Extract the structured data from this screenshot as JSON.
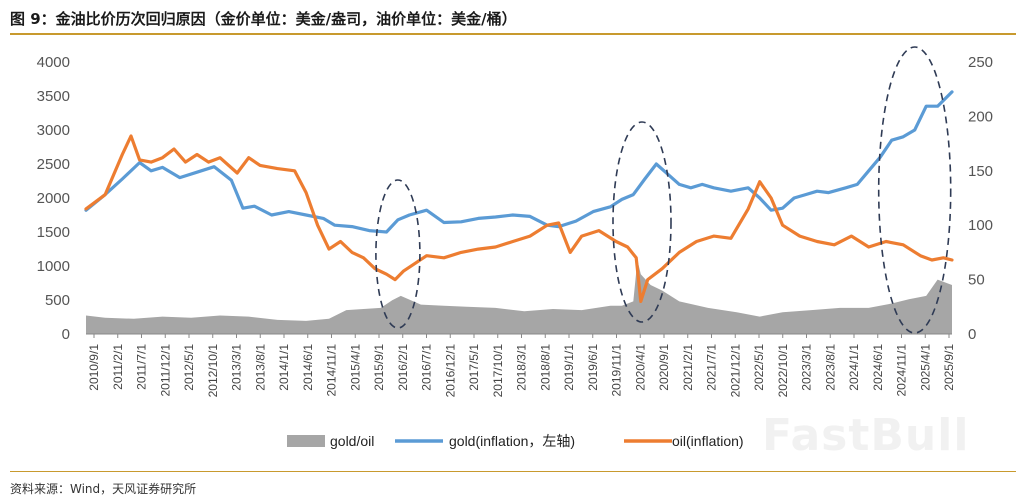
{
  "title": "图 9：金油比价历次回归原因（金价单位：美金/盎司，油价单位：美金/桶）",
  "source": "资料来源：Wind，天风证券研究所",
  "watermark": "FastBull",
  "colors": {
    "gold": "#5b9bd5",
    "oil": "#ed7d31",
    "ratio": "#a6a6a6",
    "rule": "#c89a2e",
    "ellipse": "#2f3b55"
  },
  "chart_data": {
    "type": "line",
    "left_axis": {
      "ylim": [
        0,
        4000
      ],
      "ticks": [
        "0",
        "500",
        "1000",
        "1500",
        "2000",
        "2500",
        "3000",
        "3500",
        "4000"
      ]
    },
    "right_axis": {
      "ylim": [
        0,
        250
      ],
      "ticks": [
        "0",
        "50",
        "100",
        "150",
        "200",
        "250"
      ]
    },
    "x_range": [
      2010.667,
      2025.75
    ],
    "x_tick_labels": [
      "2010/9/1",
      "2011/2/1",
      "2011/7/1",
      "2011/12/1",
      "2012/5/1",
      "2012/10/1",
      "2013/3/1",
      "2013/8/1",
      "2014/1/1",
      "2014/6/1",
      "2014/11/1",
      "2015/4/1",
      "2015/9/1",
      "2016/2/1",
      "2016/7/1",
      "2016/12/1",
      "2017/5/1",
      "2017/10/1",
      "2018/3/1",
      "2018/8/1",
      "2019/1/1",
      "2019/6/1",
      "2019/11/1",
      "2020/4/1",
      "2020/9/1",
      "2021/2/1",
      "2021/7/1",
      "2021/12/1",
      "2022/5/1",
      "2022/10/1",
      "2023/3/1",
      "2023/8/1",
      "2024/1/1",
      "2024/6/1",
      "2024/11/1",
      "2025/4/1",
      "2025/9/1"
    ],
    "legend": [
      "gold/oil",
      "gold(inflation，左轴)",
      "oil(inflation)"
    ],
    "legend_position": "bottom",
    "series": [
      {
        "name": "gold/oil",
        "axis": "right",
        "kind": "area",
        "x": [
          2010.667,
          2011.0,
          2011.5,
          2012.0,
          2012.5,
          2013.0,
          2013.5,
          2014.0,
          2014.5,
          2014.9,
          2015.2,
          2015.5,
          2015.8,
          2016.0,
          2016.15,
          2016.5,
          2016.9,
          2017.3,
          2017.8,
          2018.3,
          2018.8,
          2019.3,
          2019.8,
          2020.0,
          2020.2,
          2020.27,
          2020.33,
          2020.5,
          2020.7,
          2021.0,
          2021.5,
          2022.0,
          2022.4,
          2022.8,
          2023.3,
          2023.8,
          2024.3,
          2024.7,
          2025.0,
          2025.3,
          2025.5,
          2025.75
        ],
        "y": [
          17,
          15,
          14,
          16,
          15,
          17,
          16,
          13,
          12,
          14,
          22,
          23,
          24,
          31,
          35,
          27,
          26,
          25,
          24,
          21,
          23,
          22,
          26,
          26,
          30,
          68,
          55,
          45,
          40,
          30,
          24,
          20,
          16,
          20,
          22,
          24,
          24,
          28,
          32,
          35,
          50,
          45
        ]
      },
      {
        "name": "gold(inflation，左轴)",
        "axis": "left",
        "kind": "line",
        "x": [
          2010.667,
          2011.0,
          2011.3,
          2011.6,
          2011.8,
          2012.0,
          2012.3,
          2012.6,
          2012.9,
          2013.2,
          2013.4,
          2013.6,
          2013.9,
          2014.2,
          2014.5,
          2014.8,
          2015.0,
          2015.3,
          2015.6,
          2015.9,
          2016.1,
          2016.3,
          2016.6,
          2016.9,
          2017.2,
          2017.5,
          2017.8,
          2018.1,
          2018.4,
          2018.7,
          2018.9,
          2019.2,
          2019.5,
          2019.8,
          2020.0,
          2020.2,
          2020.4,
          2020.6,
          2020.8,
          2021.0,
          2021.2,
          2021.4,
          2021.6,
          2021.9,
          2022.2,
          2022.4,
          2022.6,
          2022.8,
          2023.0,
          2023.2,
          2023.4,
          2023.6,
          2023.9,
          2024.1,
          2024.3,
          2024.5,
          2024.7,
          2024.9,
          2025.1,
          2025.3,
          2025.5,
          2025.75
        ],
        "y": [
          1820,
          2050,
          2280,
          2520,
          2400,
          2450,
          2300,
          2380,
          2460,
          2260,
          1850,
          1880,
          1750,
          1800,
          1750,
          1700,
          1600,
          1580,
          1520,
          1500,
          1680,
          1750,
          1820,
          1640,
          1650,
          1700,
          1720,
          1750,
          1730,
          1600,
          1580,
          1660,
          1800,
          1870,
          1980,
          2050,
          2280,
          2500,
          2350,
          2200,
          2150,
          2200,
          2150,
          2100,
          2150,
          2000,
          1820,
          1850,
          2000,
          2050,
          2100,
          2080,
          2150,
          2200,
          2400,
          2600,
          2850,
          2900,
          3000,
          3350,
          3350,
          3560
        ]
      },
      {
        "name": "oil(inflation)",
        "axis": "right",
        "kind": "line",
        "x": [
          2010.667,
          2011.0,
          2011.3,
          2011.45,
          2011.6,
          2011.8,
          2012.0,
          2012.2,
          2012.4,
          2012.6,
          2012.8,
          2013.0,
          2013.3,
          2013.5,
          2013.7,
          2014.0,
          2014.3,
          2014.5,
          2014.7,
          2014.9,
          2015.1,
          2015.3,
          2015.5,
          2015.7,
          2015.9,
          2016.05,
          2016.2,
          2016.4,
          2016.6,
          2016.9,
          2017.2,
          2017.5,
          2017.8,
          2018.1,
          2018.4,
          2018.7,
          2018.9,
          2019.1,
          2019.3,
          2019.6,
          2019.9,
          2020.1,
          2020.25,
          2020.33,
          2020.45,
          2020.7,
          2021.0,
          2021.3,
          2021.6,
          2021.9,
          2022.2,
          2022.4,
          2022.6,
          2022.8,
          2023.1,
          2023.4,
          2023.7,
          2024.0,
          2024.3,
          2024.6,
          2024.9,
          2025.2,
          2025.4,
          2025.6,
          2025.75
        ],
        "y": [
          115,
          128,
          165,
          182,
          160,
          158,
          162,
          170,
          158,
          165,
          158,
          162,
          148,
          162,
          155,
          152,
          150,
          130,
          100,
          78,
          85,
          75,
          70,
          60,
          55,
          50,
          58,
          65,
          72,
          70,
          75,
          78,
          80,
          85,
          90,
          100,
          102,
          75,
          90,
          95,
          85,
          80,
          70,
          30,
          50,
          60,
          75,
          85,
          90,
          88,
          115,
          140,
          125,
          100,
          90,
          85,
          82,
          90,
          80,
          85,
          82,
          72,
          68,
          70,
          68
        ]
      }
    ],
    "annotations": [
      "dashed ellipse around 2016/2/1",
      "dashed ellipse around 2020/4/1",
      "dashed ellipse around 2025/4/1"
    ]
  }
}
